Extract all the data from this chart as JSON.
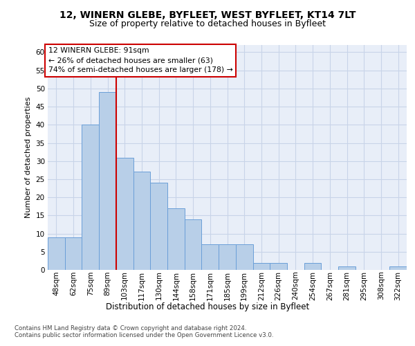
{
  "title_line1": "12, WINERN GLEBE, BYFLEET, WEST BYFLEET, KT14 7LT",
  "title_line2": "Size of property relative to detached houses in Byfleet",
  "xlabel": "Distribution of detached houses by size in Byfleet",
  "ylabel": "Number of detached properties",
  "categories": [
    "48sqm",
    "62sqm",
    "75sqm",
    "89sqm",
    "103sqm",
    "117sqm",
    "130sqm",
    "144sqm",
    "158sqm",
    "171sqm",
    "185sqm",
    "199sqm",
    "212sqm",
    "226sqm",
    "240sqm",
    "254sqm",
    "267sqm",
    "281sqm",
    "295sqm",
    "308sqm",
    "322sqm"
  ],
  "values": [
    9,
    9,
    40,
    49,
    31,
    27,
    24,
    17,
    14,
    7,
    7,
    7,
    2,
    2,
    0,
    2,
    0,
    1,
    0,
    0,
    1
  ],
  "bar_color": "#b8cfe8",
  "bar_edge_color": "#6a9fd8",
  "vline_x": 3.5,
  "vline_color": "#cc0000",
  "annotation_line1": "12 WINERN GLEBE: 91sqm",
  "annotation_line2": "← 26% of detached houses are smaller (63)",
  "annotation_line3": "74% of semi-detached houses are larger (178) →",
  "ylim": [
    0,
    62
  ],
  "yticks": [
    0,
    5,
    10,
    15,
    20,
    25,
    30,
    35,
    40,
    45,
    50,
    55,
    60
  ],
  "footer_text": "Contains HM Land Registry data © Crown copyright and database right 2024.\nContains public sector information licensed under the Open Government Licence v3.0.",
  "grid_color": "#c8d4e8",
  "background_color": "#e8eef8",
  "title_fontsize": 10,
  "subtitle_fontsize": 9,
  "xlabel_fontsize": 8.5,
  "ylabel_fontsize": 8,
  "tick_fontsize": 7.5,
  "ann_fontsize": 7.8,
  "footer_fontsize": 6.2
}
